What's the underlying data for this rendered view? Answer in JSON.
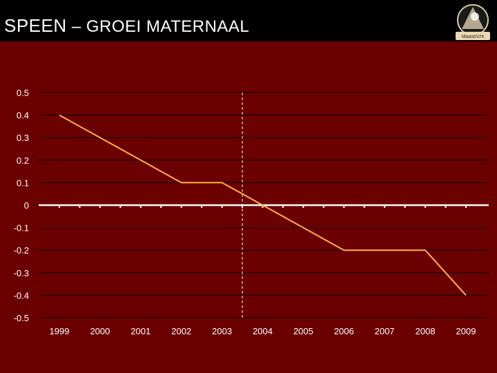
{
  "header": {
    "title_main": "SPEEN",
    "title_rest": " – GROEI MATERNAAL",
    "logo_text": "Maastricht"
  },
  "colors": {
    "background": "#6b0000",
    "title_bar": "#000000",
    "line": "#ffb347",
    "axis": "#ffffff",
    "grid": "#000000"
  },
  "chart_data": {
    "type": "line",
    "categories": [
      "1999",
      "2000",
      "2001",
      "2002",
      "2003",
      "2004",
      "2005",
      "2006",
      "2007",
      "2008",
      "2009"
    ],
    "series": [
      {
        "values": [
          0.4,
          0.3,
          0.2,
          0.1,
          0.1,
          0.0,
          -0.1,
          -0.2,
          -0.2,
          -0.2,
          -0.4
        ]
      }
    ],
    "ylim": [
      -0.5,
      0.5
    ],
    "yticks": [
      0.5,
      0.4,
      0.3,
      0.2,
      0.1,
      0,
      -0.1,
      -0.2,
      -0.3,
      -0.4,
      -0.5
    ],
    "ytick_labels": [
      "0.5",
      "0.4",
      "0.3",
      "0.2",
      "0.1",
      "0",
      "-0.1",
      "-0.2",
      "-0.3",
      "-0.4",
      "-0.5"
    ],
    "grid": true,
    "annotation_x": 2003.5,
    "title": "",
    "xlabel": "",
    "ylabel": ""
  }
}
